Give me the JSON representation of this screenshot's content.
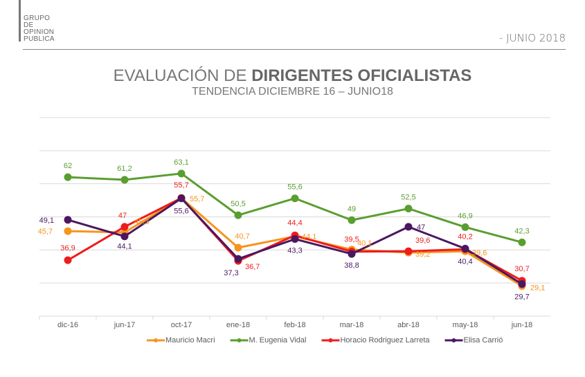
{
  "logo": {
    "lines": [
      "GRUPO",
      "DE",
      "OPINION",
      "PUBLICA"
    ]
  },
  "header": {
    "date": "- JUNIO 2018"
  },
  "title": {
    "normal": "EVALUACIÓN DE ",
    "bold": "DIRIGENTES OFICIALISTAS",
    "subtitle": "TENDENCIA DICIEMBRE 16  – JUNIO18"
  },
  "chart_data": {
    "type": "line",
    "categories": [
      "dic-16",
      "jun-17",
      "oct-17",
      "ene-18",
      "feb-18",
      "mar-18",
      "abr-18",
      "may-18",
      "jun-18"
    ],
    "ylim": [
      20,
      80
    ],
    "grid": true,
    "legend_placement": "bottom",
    "series": [
      {
        "name": "Mauricio Macri",
        "color": "#F7941D",
        "values": [
          45.7,
          45.3,
          55.7,
          40.7,
          44.1,
          40.1,
          39.2,
          39.6,
          29.1
        ],
        "labels": [
          "45,7",
          "45,3",
          "55,7",
          "40,7",
          "44,1",
          "40,1",
          "39,2",
          "39,6",
          "29,1"
        ]
      },
      {
        "name": "M. Eugenia Vidal",
        "color": "#5A9E2F",
        "values": [
          62,
          61.2,
          63.1,
          50.5,
          55.6,
          49,
          52.5,
          46.9,
          42.3
        ],
        "labels": [
          "62",
          "61,2",
          "63,1",
          "50,5",
          "55,6",
          "49",
          "52,5",
          "46,9",
          "42,3"
        ]
      },
      {
        "name": "Horacio Rodriguez Larreta",
        "color": "#EE1C1C",
        "values": [
          36.9,
          47,
          55.7,
          36.7,
          44.4,
          39.5,
          39.6,
          40.2,
          30.7
        ],
        "labels": [
          "36,9",
          "47",
          "55,7",
          "36,7",
          "44,4",
          "39,5",
          "39,6",
          "40,2",
          "30,7"
        ]
      },
      {
        "name": "Elisa Carrió",
        "color": "#4B1760",
        "values": [
          49.1,
          44.1,
          55.6,
          37.3,
          43.3,
          38.8,
          47,
          40.4,
          29.7
        ],
        "labels": [
          "49,1",
          "44,1",
          "55,6",
          "37,3",
          "43,3",
          "38,8",
          "47",
          "40,4",
          "29,7"
        ]
      }
    ]
  }
}
